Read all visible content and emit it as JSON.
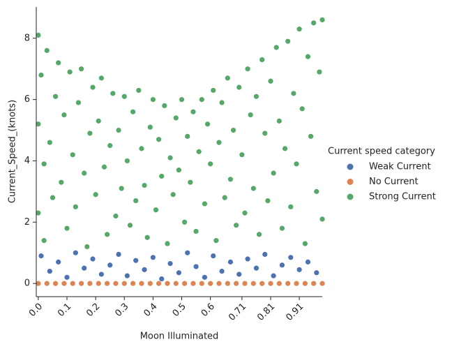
{
  "chart_data": {
    "type": "scatter",
    "x_label": "Moon Illuminated",
    "y_label": "Current_Speed_(knots)",
    "legend_title": "Current speed category",
    "legend_position": "right",
    "xlim": [
      -0.007,
      0.99
    ],
    "ylim": [
      -0.43,
      9.02
    ],
    "xticks": [
      {
        "value": 0,
        "label": "0.0"
      },
      0.1,
      0.2,
      0.3,
      0.4,
      0.5,
      0.6,
      0.71,
      0.81,
      0.91
    ],
    "yticks": [
      0,
      2,
      4,
      6,
      8
    ],
    "series": [
      {
        "name": "Weak Current",
        "color": "#4c72b0",
        "x": [
          0.01,
          0.04,
          0.07,
          0.1,
          0.13,
          0.16,
          0.19,
          0.22,
          0.25,
          0.28,
          0.31,
          0.34,
          0.37,
          0.4,
          0.43,
          0.46,
          0.49,
          0.52,
          0.55,
          0.58,
          0.61,
          0.64,
          0.67,
          0.7,
          0.73,
          0.76,
          0.79,
          0.82,
          0.85,
          0.88,
          0.91,
          0.94,
          0.97
        ],
        "values": [
          0.9,
          0.4,
          0.7,
          0.2,
          1.0,
          0.5,
          0.8,
          0.3,
          0.6,
          0.95,
          0.25,
          0.75,
          0.45,
          0.85,
          0.15,
          0.65,
          0.35,
          1.0,
          0.55,
          0.2,
          0.9,
          0.4,
          0.7,
          0.3,
          0.8,
          0.5,
          0.95,
          0.25,
          0.6,
          0.85,
          0.45,
          0.7,
          0.35
        ]
      },
      {
        "name": "No Current",
        "color": "#dd8452",
        "x": [
          0,
          0.03,
          0.06,
          0.09,
          0.12,
          0.15,
          0.18,
          0.21,
          0.24,
          0.27,
          0.3,
          0.33,
          0.36,
          0.39,
          0.42,
          0.45,
          0.48,
          0.51,
          0.54,
          0.57,
          0.6,
          0.63,
          0.66,
          0.69,
          0.72,
          0.75,
          0.78,
          0.81,
          0.84,
          0.87,
          0.9,
          0.93,
          0.96,
          0.99
        ],
        "values": [
          0,
          0,
          0,
          0,
          0,
          0,
          0,
          0,
          0,
          0,
          0,
          0,
          0,
          0,
          0,
          0,
          0,
          0,
          0,
          0,
          0,
          0,
          0,
          0,
          0,
          0,
          0,
          0,
          0,
          0,
          0,
          0,
          0,
          0
        ]
      },
      {
        "name": "Strong Current",
        "color": "#55a868",
        "x": [
          0,
          0,
          0,
          0.01,
          0.02,
          0.02,
          0.03,
          0.04,
          0.05,
          0.06,
          0.07,
          0.08,
          0.09,
          0.1,
          0.11,
          0.12,
          0.13,
          0.14,
          0.15,
          0.16,
          0.17,
          0.18,
          0.19,
          0.2,
          0.21,
          0.22,
          0.23,
          0.24,
          0.25,
          0.26,
          0.27,
          0.28,
          0.29,
          0.3,
          0.31,
          0.32,
          0.33,
          0.34,
          0.35,
          0.36,
          0.37,
          0.38,
          0.39,
          0.4,
          0.41,
          0.42,
          0.43,
          0.44,
          0.45,
          0.46,
          0.47,
          0.48,
          0.49,
          0.5,
          0.51,
          0.52,
          0.53,
          0.54,
          0.55,
          0.56,
          0.57,
          0.58,
          0.59,
          0.6,
          0.61,
          0.62,
          0.63,
          0.64,
          0.65,
          0.66,
          0.67,
          0.68,
          0.69,
          0.7,
          0.71,
          0.72,
          0.73,
          0.74,
          0.75,
          0.76,
          0.77,
          0.78,
          0.79,
          0.8,
          0.81,
          0.82,
          0.83,
          0.84,
          0.85,
          0.86,
          0.87,
          0.88,
          0.89,
          0.9,
          0.91,
          0.92,
          0.93,
          0.94,
          0.95,
          0.96,
          0.97,
          0.98,
          0.99,
          0.99
        ],
        "values": [
          8.1,
          5.2,
          2.3,
          6.8,
          3.9,
          1.4,
          7.6,
          4.6,
          2.8,
          6.1,
          7.2,
          3.3,
          5.5,
          1.8,
          6.9,
          4.2,
          2.5,
          5.9,
          7.0,
          3.6,
          1.2,
          4.9,
          6.4,
          2.9,
          5.3,
          6.7,
          3.8,
          1.6,
          4.5,
          6.2,
          2.2,
          5.0,
          3.1,
          6.1,
          4.0,
          1.9,
          5.6,
          2.7,
          6.3,
          4.4,
          3.2,
          1.5,
          5.1,
          6.0,
          2.4,
          4.7,
          3.5,
          5.8,
          1.3,
          4.1,
          2.9,
          5.4,
          3.7,
          6.0,
          2.0,
          4.8,
          3.3,
          5.6,
          1.7,
          4.3,
          6.0,
          2.6,
          5.2,
          3.9,
          6.3,
          1.4,
          4.6,
          5.9,
          2.8,
          6.7,
          3.4,
          5.0,
          1.9,
          6.4,
          4.2,
          2.3,
          7.0,
          5.5,
          3.1,
          6.1,
          1.6,
          7.3,
          4.9,
          2.7,
          6.6,
          3.6,
          7.7,
          5.3,
          1.8,
          4.4,
          7.9,
          2.5,
          6.2,
          3.9,
          8.3,
          5.7,
          1.3,
          7.4,
          4.8,
          8.5,
          3.0,
          6.9,
          8.6,
          2.1
        ]
      }
    ]
  }
}
